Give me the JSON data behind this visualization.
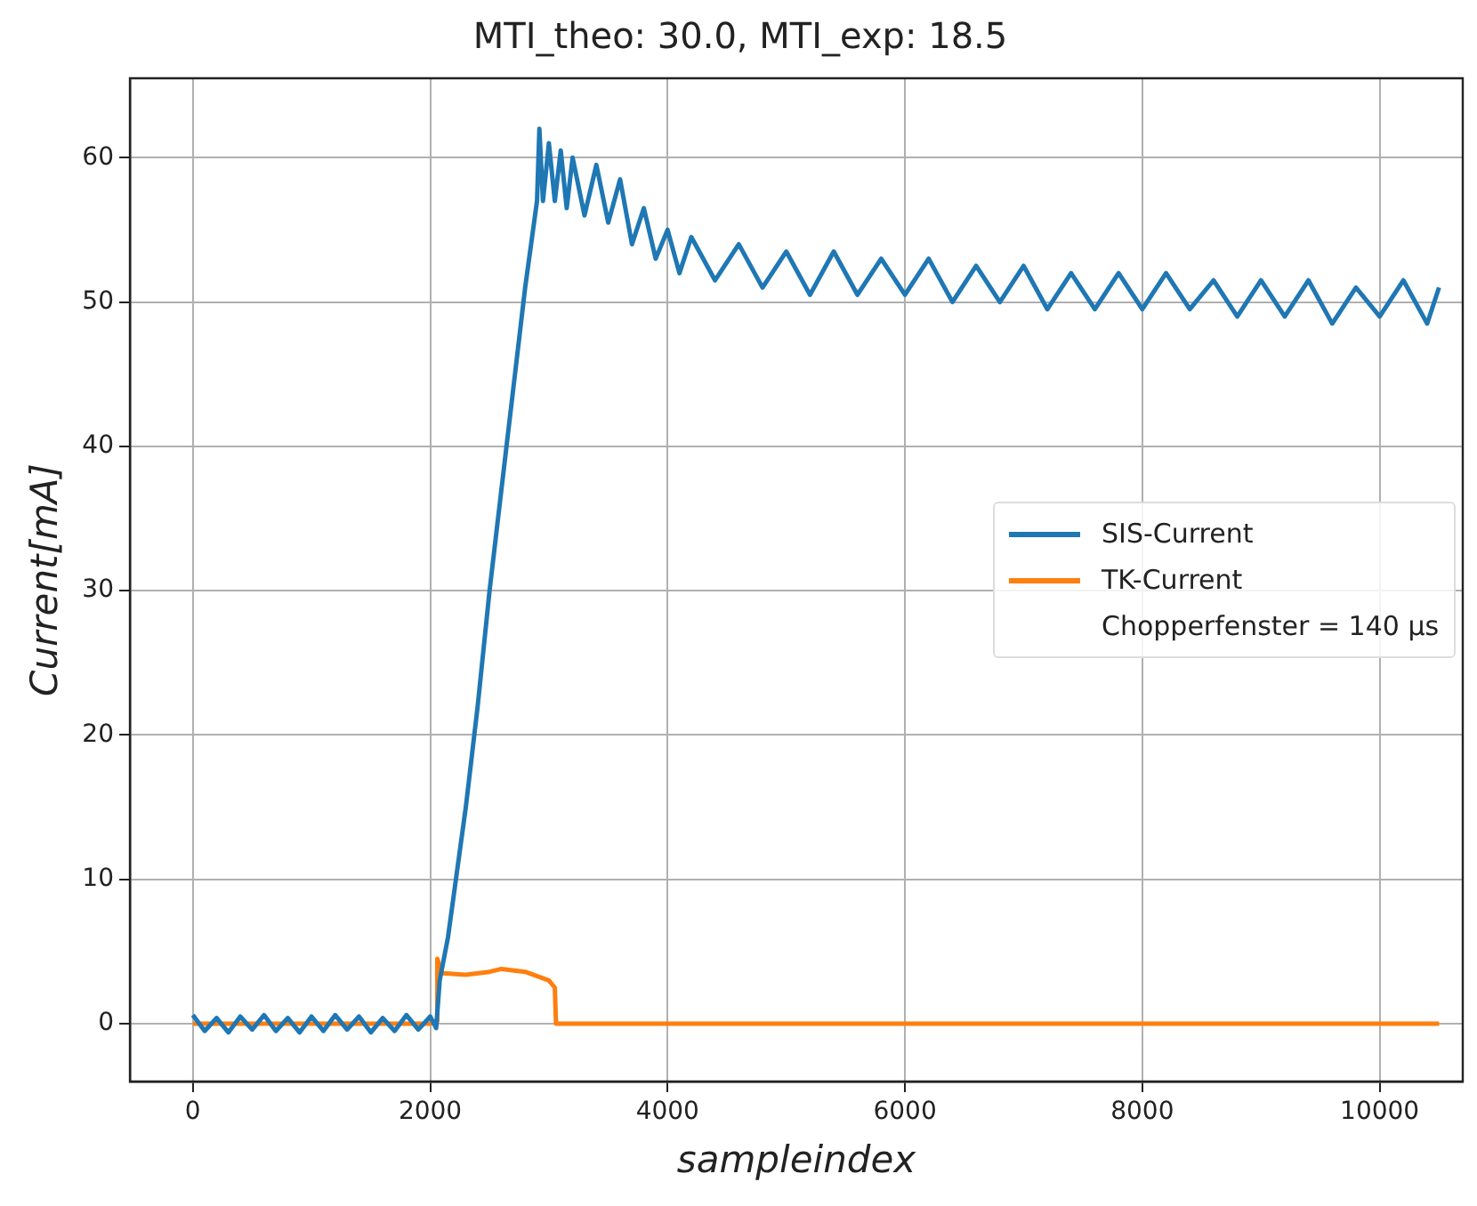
{
  "chart_data": {
    "type": "line",
    "title": "MTI_theo: 30.0, MTI_exp: 18.5",
    "xlabel": "sampleindex",
    "ylabel": "Current[mA]",
    "xlim": [
      -530,
      10700
    ],
    "xticks": [
      0,
      2000,
      4000,
      6000,
      8000,
      10000
    ],
    "ylim": [
      -4,
      65.5
    ],
    "yticks": [
      0,
      10,
      20,
      30,
      40,
      50,
      60
    ],
    "grid": true,
    "legend": "right",
    "annotations": [
      "Chopperfenster = 140 µs"
    ],
    "series": [
      {
        "name": "SIS-Current",
        "color": "#1f77b4",
        "x": [
          0,
          100,
          200,
          300,
          400,
          500,
          600,
          700,
          800,
          900,
          1000,
          1100,
          1200,
          1300,
          1400,
          1500,
          1600,
          1700,
          1800,
          1900,
          2000,
          2050,
          2080,
          2150,
          2200,
          2300,
          2400,
          2500,
          2600,
          2700,
          2800,
          2900,
          2920,
          2950,
          3000,
          3050,
          3100,
          3150,
          3200,
          3300,
          3400,
          3500,
          3600,
          3700,
          3800,
          3900,
          4000,
          4100,
          4200,
          4400,
          4600,
          4800,
          5000,
          5200,
          5400,
          5600,
          5800,
          6000,
          6200,
          6400,
          6600,
          6800,
          7000,
          7200,
          7400,
          7600,
          7800,
          8000,
          8200,
          8400,
          8600,
          8800,
          9000,
          9200,
          9400,
          9600,
          9800,
          10000,
          10200,
          10400,
          10500
        ],
        "values": [
          0.6,
          -0.5,
          0.4,
          -0.6,
          0.5,
          -0.4,
          0.6,
          -0.5,
          0.4,
          -0.6,
          0.5,
          -0.5,
          0.6,
          -0.4,
          0.5,
          -0.6,
          0.4,
          -0.5,
          0.6,
          -0.4,
          0.5,
          -0.3,
          3,
          6,
          9,
          15,
          22,
          30,
          37,
          44,
          51,
          57,
          62,
          57,
          61,
          57,
          60.5,
          56.5,
          60,
          56,
          59.5,
          55.5,
          58.5,
          54,
          56.5,
          53,
          55,
          52,
          54.5,
          51.5,
          54,
          51,
          53.5,
          50.5,
          53.5,
          50.5,
          53,
          50.5,
          53,
          50,
          52.5,
          50,
          52.5,
          49.5,
          52,
          49.5,
          52,
          49.5,
          52,
          49.5,
          51.5,
          49,
          51.5,
          49,
          51.5,
          48.5,
          51,
          49,
          51.5,
          48.5,
          51
        ]
      },
      {
        "name": "TK-Current",
        "color": "#ff7f0e",
        "x": [
          0,
          2000,
          2050,
          2060,
          2100,
          2300,
          2500,
          2600,
          2800,
          3000,
          3050,
          3060,
          10500
        ],
        "values": [
          0,
          0,
          0.2,
          4.5,
          3.5,
          3.4,
          3.6,
          3.8,
          3.6,
          3,
          2.5,
          0,
          0
        ]
      }
    ]
  }
}
